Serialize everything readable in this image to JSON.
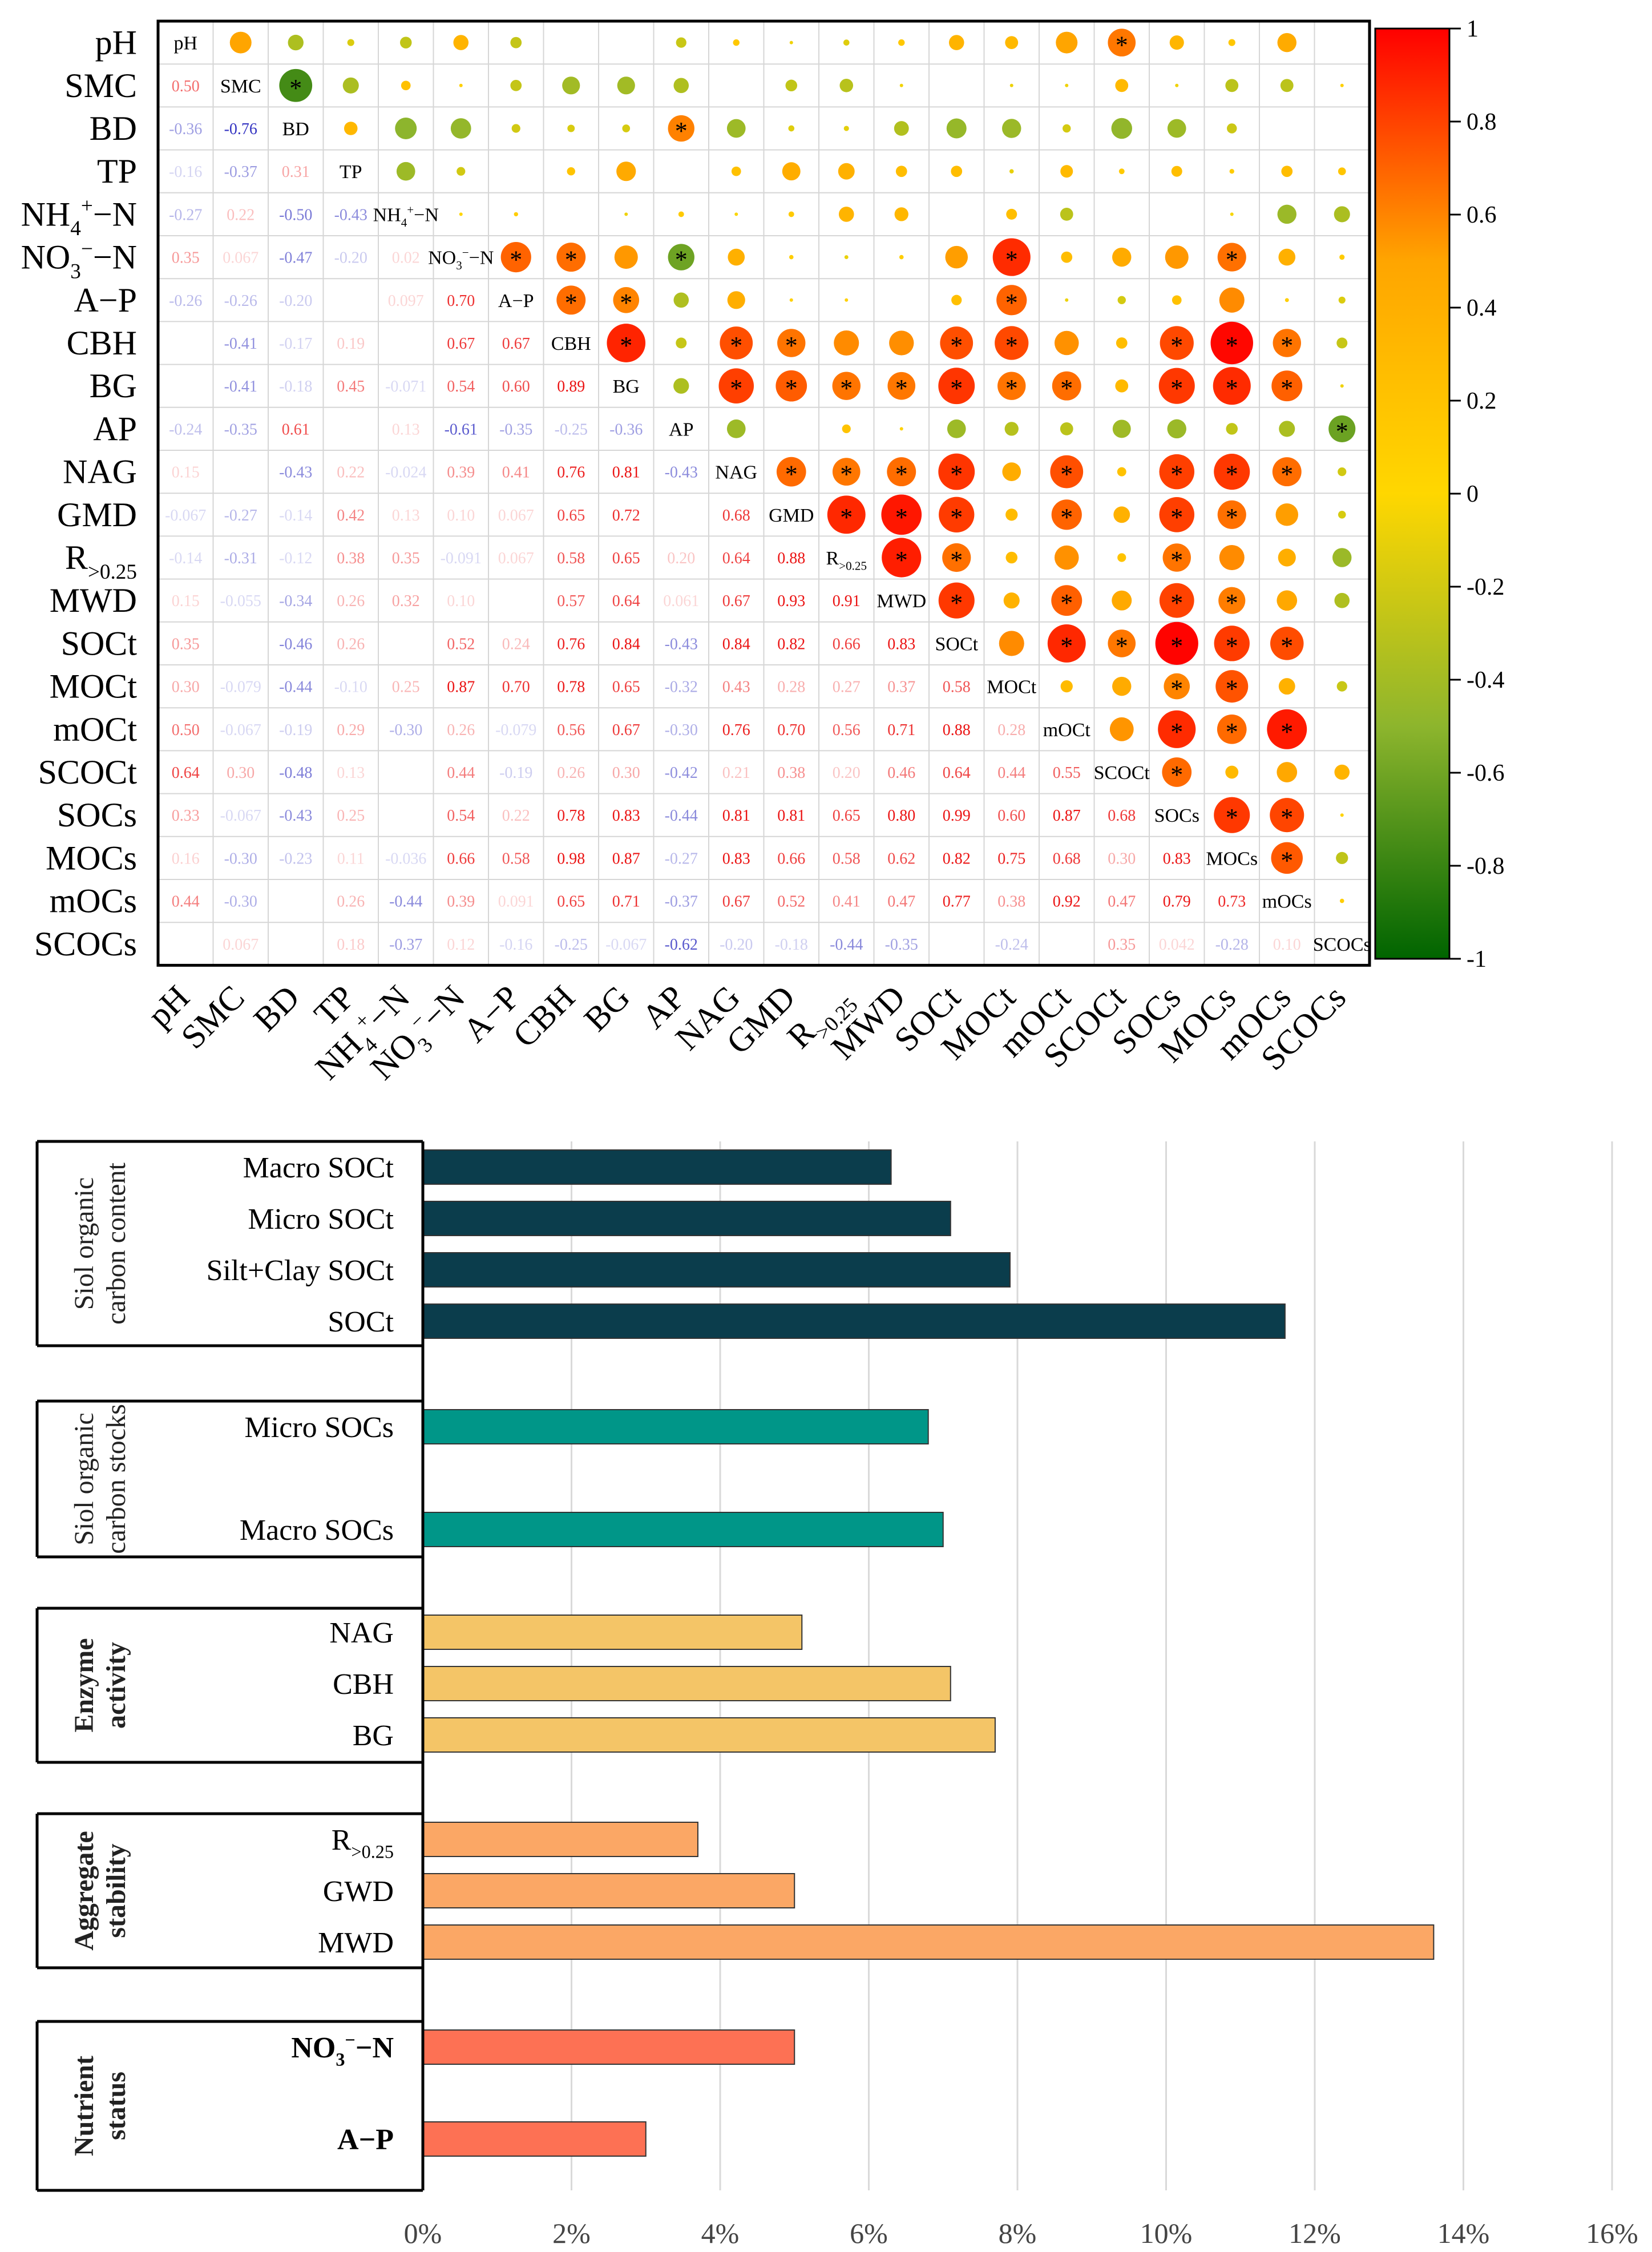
{
  "chart_data": [
    {
      "type": "heatmap",
      "title": "",
      "variables": [
        "pH",
        "SMC",
        "BD",
        "TP",
        "NH4+−N",
        "NO3−−N",
        "A−P",
        "CBH",
        "BG",
        "AP",
        "NAG",
        "GMD",
        "R>0.25",
        "MWD",
        "SOCt",
        "MOCt",
        "mOCt",
        "SCOCt",
        "SOCs",
        "MOCs",
        "mOCs",
        "SCOCs"
      ],
      "lower_triangle_coefficients": [
        [],
        [
          0.5
        ],
        [
          -0.36,
          -0.76
        ],
        [
          -0.16,
          -0.37,
          0.31
        ],
        [
          -0.27,
          0.22,
          -0.5,
          -0.43
        ],
        [
          0.35,
          0.067,
          -0.47,
          -0.2,
          0.02
        ],
        [
          -0.26,
          -0.26,
          -0.2,
          null,
          0.097,
          0.7
        ],
        [
          null,
          -0.41,
          -0.17,
          0.19,
          null,
          0.67,
          0.67
        ],
        [
          null,
          -0.41,
          -0.18,
          0.45,
          -0.071,
          0.54,
          0.6,
          0.89
        ],
        [
          -0.24,
          -0.35,
          0.61,
          null,
          0.13,
          -0.61,
          -0.35,
          -0.25,
          -0.36
        ],
        [
          0.15,
          null,
          -0.43,
          0.22,
          -0.024,
          0.39,
          0.41,
          0.76,
          0.81,
          -0.43
        ],
        [
          -0.067,
          -0.27,
          -0.14,
          0.42,
          0.13,
          0.1,
          0.067,
          0.65,
          0.72,
          null,
          0.68
        ],
        [
          -0.14,
          -0.31,
          -0.12,
          0.38,
          0.35,
          -0.091,
          0.067,
          0.58,
          0.65,
          0.2,
          0.64,
          0.88
        ],
        [
          0.15,
          -0.055,
          -0.34,
          0.26,
          0.32,
          0.1,
          null,
          0.57,
          0.64,
          0.061,
          0.67,
          0.93,
          0.91
        ],
        [
          0.35,
          null,
          -0.46,
          0.26,
          null,
          0.52,
          0.24,
          0.76,
          0.84,
          -0.43,
          0.84,
          0.82,
          0.66,
          0.83
        ],
        [
          0.3,
          -0.079,
          -0.44,
          -0.1,
          0.25,
          0.87,
          0.7,
          0.78,
          0.65,
          -0.32,
          0.43,
          0.28,
          0.27,
          0.37,
          0.58
        ],
        [
          0.5,
          -0.067,
          -0.19,
          0.29,
          -0.3,
          0.26,
          -0.079,
          0.56,
          0.67,
          -0.3,
          0.76,
          0.7,
          0.56,
          0.71,
          0.88,
          0.28
        ],
        [
          0.64,
          0.3,
          -0.48,
          0.13,
          null,
          0.44,
          -0.19,
          0.26,
          0.3,
          -0.42,
          0.21,
          0.38,
          0.2,
          0.46,
          0.64,
          0.44,
          0.55
        ],
        [
          0.33,
          -0.067,
          -0.43,
          0.25,
          null,
          0.54,
          0.22,
          0.78,
          0.83,
          -0.44,
          0.81,
          0.81,
          0.65,
          0.8,
          0.99,
          0.6,
          0.87,
          0.68
        ],
        [
          0.16,
          -0.3,
          -0.23,
          0.11,
          -0.036,
          0.66,
          0.58,
          0.98,
          0.87,
          -0.27,
          0.83,
          0.66,
          0.58,
          0.62,
          0.82,
          0.75,
          0.68,
          0.3,
          0.83
        ],
        [
          0.44,
          -0.3,
          null,
          0.26,
          -0.44,
          0.39,
          0.091,
          0.65,
          0.71,
          -0.37,
          0.67,
          0.52,
          0.41,
          0.47,
          0.77,
          0.38,
          0.92,
          0.47,
          0.79,
          0.73
        ],
        [
          null,
          0.067,
          null,
          0.18,
          -0.37,
          0.12,
          -0.16,
          -0.25,
          -0.067,
          -0.62,
          -0.2,
          -0.18,
          -0.44,
          -0.35,
          null,
          -0.24,
          null,
          0.35,
          0.042,
          -0.28,
          0.1
        ]
      ],
      "diagonal_labels": [
        "pH",
        "SMC",
        "BD",
        "TP",
        "NH₄⁺−N",
        "NO₃⁻−N",
        "A−P",
        "CBH",
        "BG",
        "AP",
        "NAG",
        "GMD",
        "R₍>0.25₎",
        "MWD",
        "SOCt",
        "MOCt",
        "mOCt",
        "SCOCt",
        "SOCs",
        "MOCs",
        "mOCs",
        "SCOCs"
      ],
      "significance_marker": "*",
      "colorbar": {
        "range": [
          -1,
          1
        ],
        "ticks": [
          "1",
          "0.8",
          "0.6",
          "0.4",
          "0.2",
          "0",
          "-0.2",
          "-0.4",
          "-0.6",
          "-0.8",
          "-1"
        ],
        "colors": [
          "#006400",
          "#8db52d",
          "#ffd700",
          "#ffa500",
          "#ff0000"
        ]
      }
    },
    {
      "type": "bar",
      "orientation": "horizontal",
      "xlim": [
        0,
        16
      ],
      "x_ticks": [
        "0%",
        "2%",
        "4%",
        "6%",
        "8%",
        "10%",
        "12%",
        "14%",
        "16%"
      ],
      "groups": [
        {
          "name": "Siol organic carbon content",
          "color": "#0b3d4c",
          "bars": [
            {
              "label": "Macro SOCt",
              "value": 6.3
            },
            {
              "label": "Micro SOCt",
              "value": 7.1
            },
            {
              "label": "Silt+Clay SOCt",
              "value": 7.9
            },
            {
              "label": "SOCt",
              "value": 11.6
            }
          ]
        },
        {
          "name": "Siol organic carbon stocks",
          "color": "#009688",
          "bars": [
            {
              "label": "Micro SOCs",
              "value": 6.8
            },
            {
              "label": "Macro SOCs",
              "value": 7.0
            }
          ]
        },
        {
          "name": "Enzyme activity",
          "color": "#f4c567",
          "bars": [
            {
              "label": "NAG",
              "value": 5.1
            },
            {
              "label": "CBH",
              "value": 7.1
            },
            {
              "label": "BG",
              "value": 7.7
            }
          ]
        },
        {
          "name": "Aggregate stability",
          "color": "#fba765",
          "bars": [
            {
              "label": "R>0.25",
              "value": 3.7
            },
            {
              "label": "GWD",
              "value": 5.0
            },
            {
              "label": "MWD",
              "value": 13.6
            }
          ]
        },
        {
          "name": "Nutrient status",
          "color": "#fd7154",
          "bars": [
            {
              "label": "NO3−−N",
              "value": 5.0
            },
            {
              "label": "A−P",
              "value": 3.0
            }
          ]
        }
      ]
    }
  ]
}
